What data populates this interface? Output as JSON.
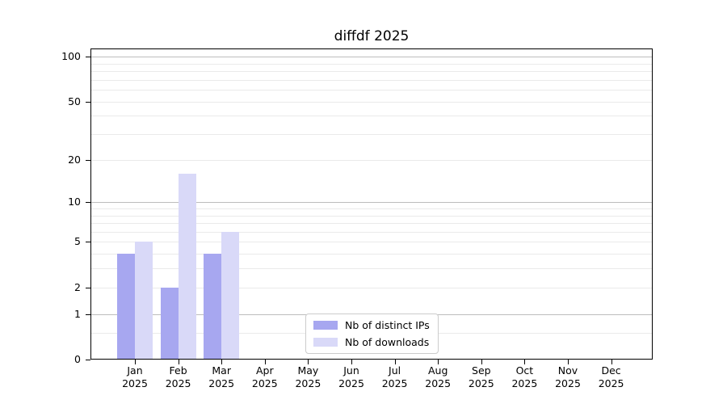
{
  "title": "diffdf 2025",
  "chart_data": {
    "type": "bar",
    "title": "diffdf 2025",
    "months": [
      "Jan",
      "Feb",
      "Mar",
      "Apr",
      "May",
      "Jun",
      "Jul",
      "Aug",
      "Sep",
      "Oct",
      "Nov",
      "Dec"
    ],
    "year": "2025",
    "categories": [
      "Jan 2025",
      "Feb 2025",
      "Mar 2025",
      "Apr 2025",
      "May 2025",
      "Jun 2025",
      "Jul 2025",
      "Aug 2025",
      "Sep 2025",
      "Oct 2025",
      "Nov 2025",
      "Dec 2025"
    ],
    "series": [
      {
        "name": "Nb of distinct IPs",
        "color": "#a7a7f0",
        "values": [
          4,
          2,
          4,
          0,
          0,
          0,
          0,
          0,
          0,
          0,
          0,
          0
        ]
      },
      {
        "name": "Nb of downloads",
        "color": "#d9d9f8",
        "values": [
          5,
          16,
          6,
          0,
          0,
          0,
          0,
          0,
          0,
          0,
          0,
          0
        ]
      }
    ],
    "yscale": "log1p",
    "ylim": [
      0,
      100
    ],
    "yticks": [
      0,
      1,
      2,
      5,
      10,
      20,
      50,
      100
    ],
    "major_gridlines": [
      1,
      10,
      100
    ],
    "minor_gridlines": [
      0.5,
      2,
      3,
      4,
      5,
      6,
      7,
      8,
      9,
      20,
      30,
      40,
      50,
      60,
      70,
      80,
      90
    ],
    "grid": true,
    "legend_position": "lower center"
  },
  "colors": {
    "major_grid": "#bdbdbd",
    "minor_grid": "#eaeaea",
    "spine": "#000000",
    "legend_border": "#cccccc",
    "background": "#ffffff"
  }
}
